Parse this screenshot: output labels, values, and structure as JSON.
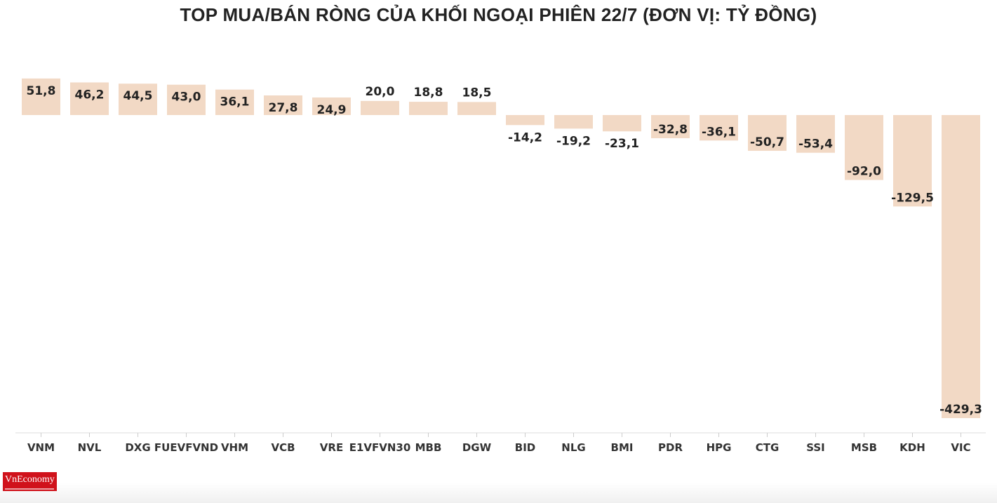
{
  "chart_data": {
    "type": "bar",
    "title": "TOP MUA/BÁN RÒNG CỦA KHỐI NGOẠI PHIÊN 22/7 (ĐƠN VỊ: TỶ ĐỒNG)",
    "categories": [
      "VNM",
      "NVL",
      "DXG",
      "FUEVFVND",
      "VHM",
      "VCB",
      "VRE",
      "E1VFVN30",
      "MBB",
      "DGW",
      "BID",
      "NLG",
      "BMI",
      "PDR",
      "HPG",
      "CTG",
      "SSI",
      "MSB",
      "KDH",
      "VIC"
    ],
    "values": [
      51.8,
      46.2,
      44.5,
      43.0,
      36.1,
      27.8,
      24.9,
      20.0,
      18.8,
      18.5,
      -14.2,
      -19.2,
      -23.1,
      -32.8,
      -36.1,
      -50.7,
      -53.4,
      -92.0,
      -129.5,
      -429.3
    ],
    "value_labels": [
      "51,8",
      "46,2",
      "44,5",
      "43,0",
      "36,1",
      "27,8",
      "24,9",
      "20,0",
      "18,8",
      "18,5",
      "-14,2",
      "-19,2",
      "-23,1",
      "-32,8",
      "-36,1",
      "-50,7",
      "-53,4",
      "-92,0",
      "-129,5",
      "-429,3"
    ],
    "xlabel": "",
    "ylabel": "",
    "ylim": [
      -429.3,
      51.8
    ],
    "grid": false,
    "bar_color": "#f2d9c5"
  },
  "logo": {
    "text": "VnEconomy"
  }
}
